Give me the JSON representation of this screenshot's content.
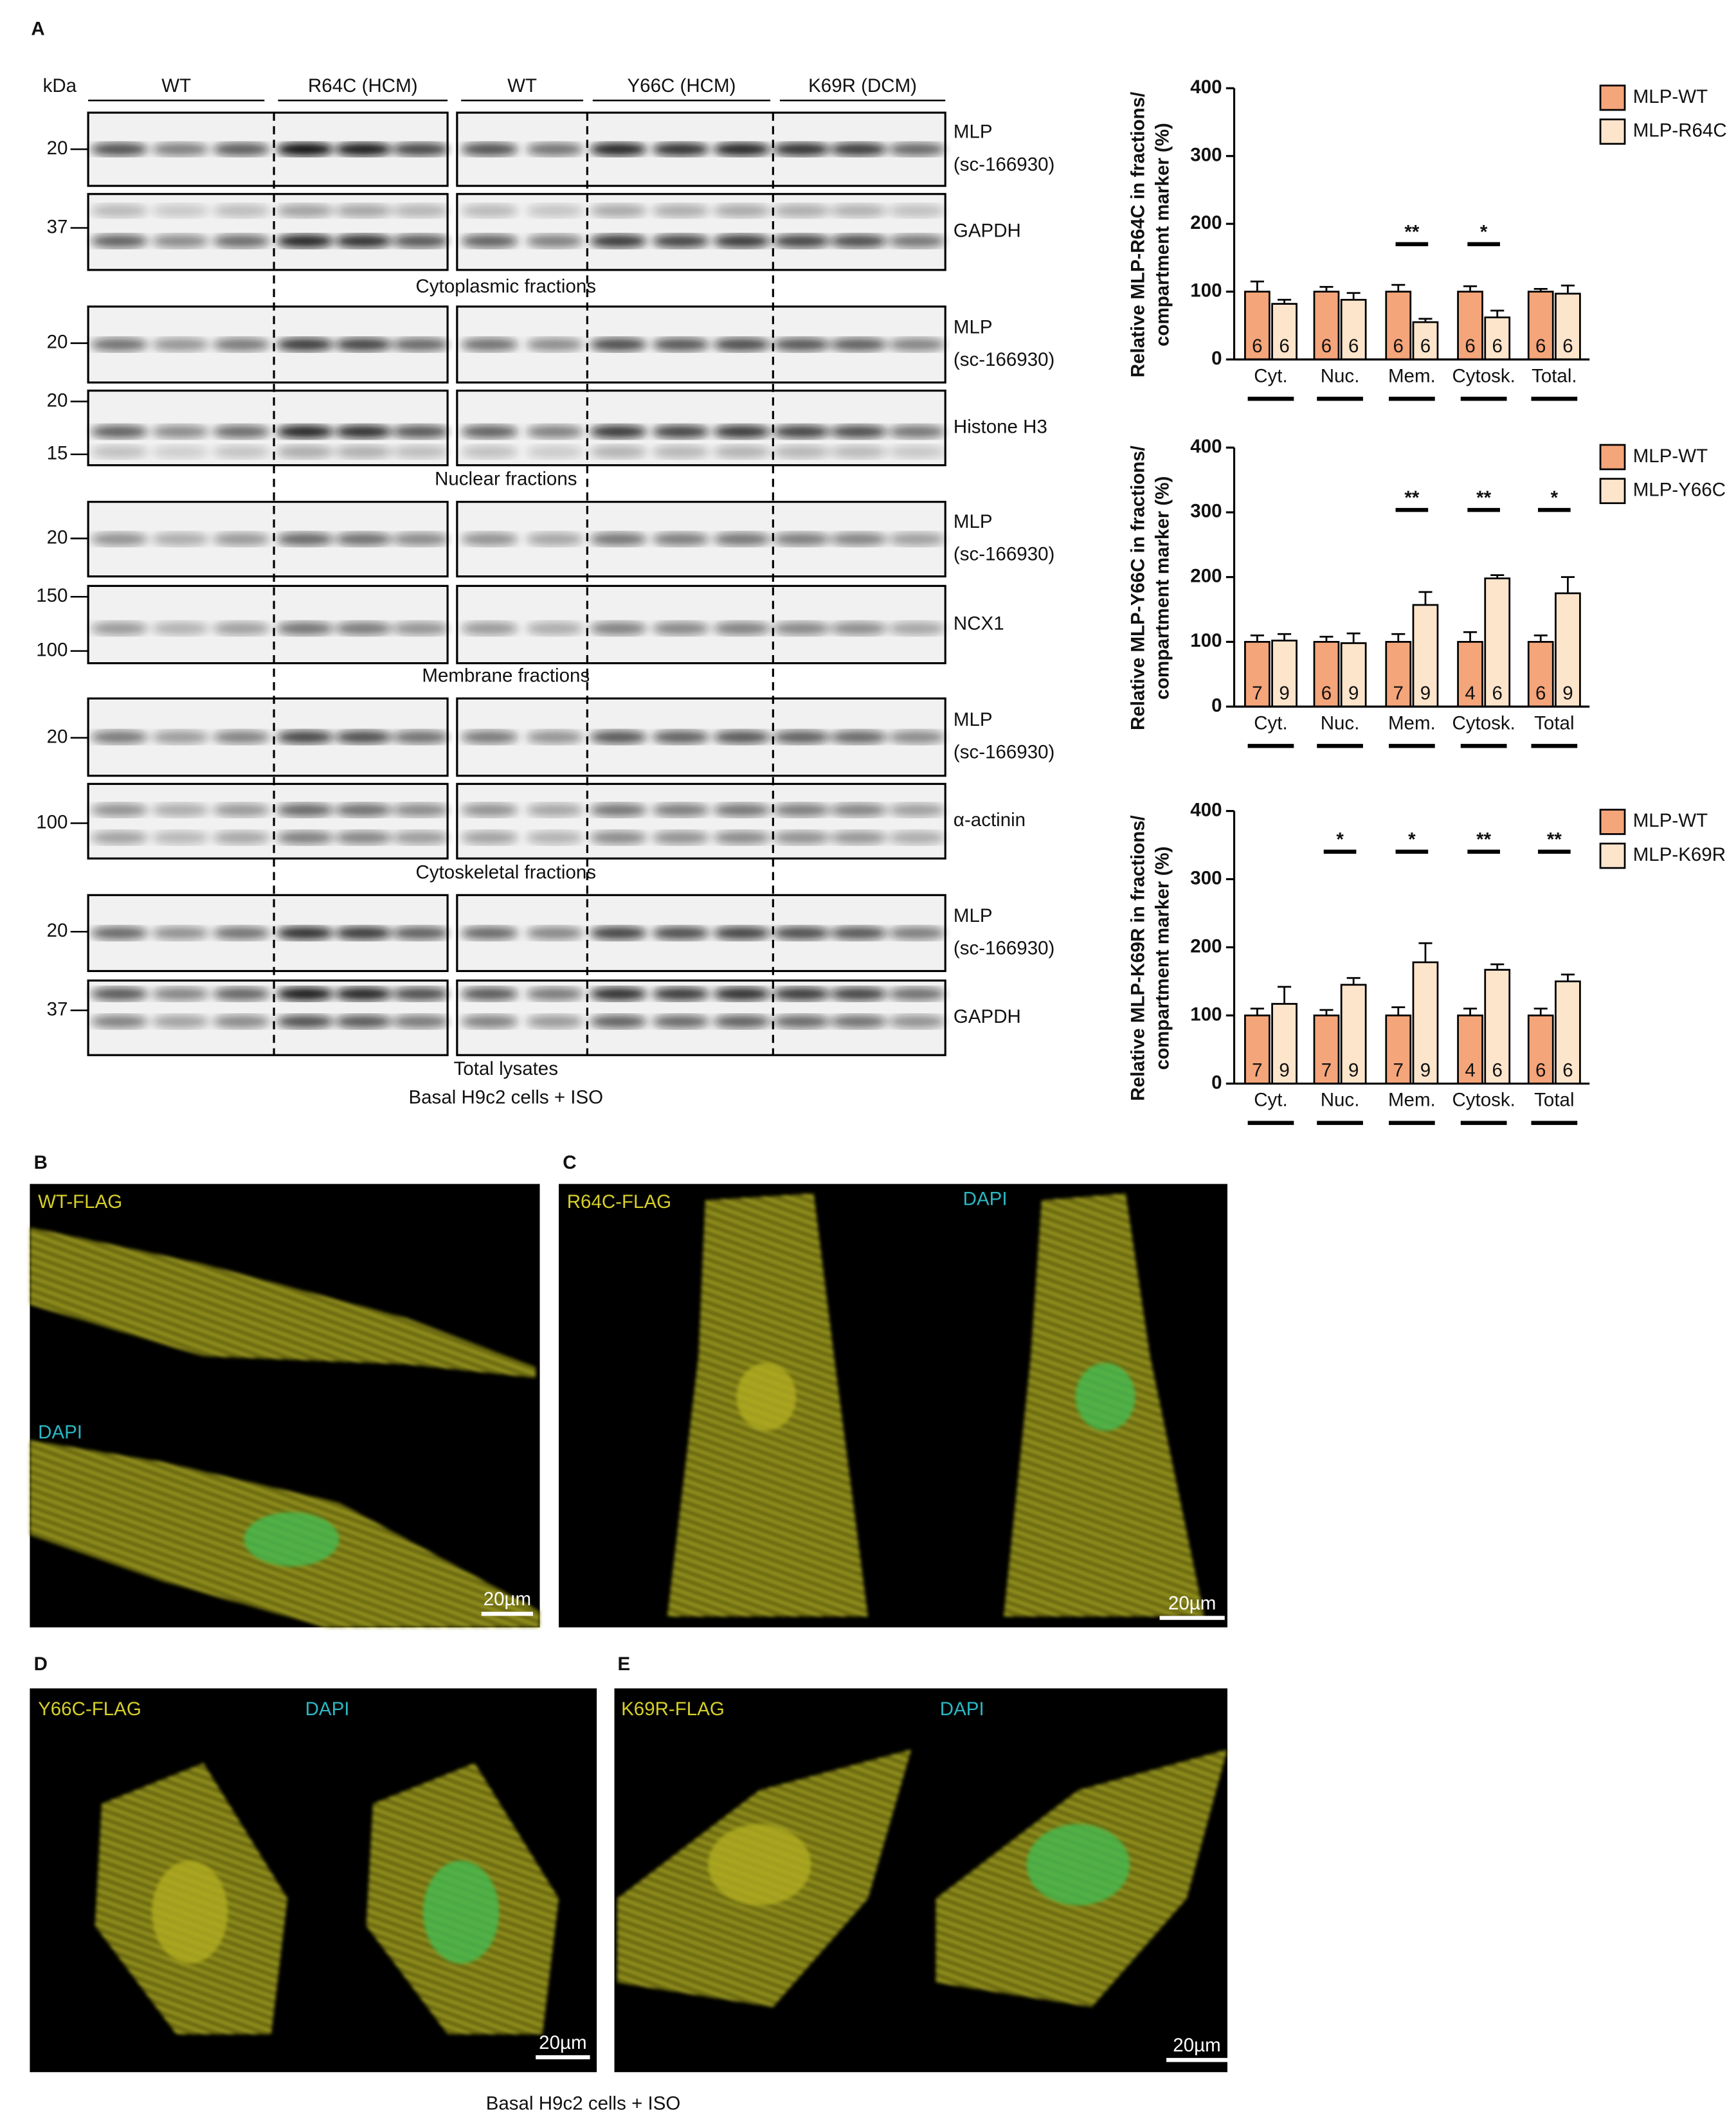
{
  "panel_a": {
    "label": "A",
    "blots": {
      "kda_label": "kDa",
      "groups": [
        "WT",
        "R64C (HCM)",
        "WT",
        "Y66C (HCM)",
        "K69R (DCM)"
      ],
      "rows": [
        {
          "markers": [
            20
          ],
          "protein": [
            "MLP",
            "(sc-166930)"
          ]
        },
        {
          "markers": [
            37
          ],
          "protein": [
            "GAPDH"
          ]
        },
        {
          "markers": [
            20
          ],
          "protein": [
            "MLP",
            "(sc-166930)"
          ]
        },
        {
          "markers": [
            20,
            15
          ],
          "protein": [
            "Histone H3"
          ]
        },
        {
          "markers": [
            20
          ],
          "protein": [
            "MLP",
            "(sc-166930)"
          ]
        },
        {
          "markers": [
            150,
            100
          ],
          "protein": [
            "NCX1"
          ]
        },
        {
          "markers": [
            20
          ],
          "protein": [
            "MLP",
            "(sc-166930)"
          ]
        },
        {
          "markers": [
            100
          ],
          "protein": [
            "α-actinin"
          ]
        },
        {
          "markers": [
            20
          ],
          "protein": [
            "MLP",
            "(sc-166930)"
          ]
        },
        {
          "markers": [
            37
          ],
          "protein": [
            "GAPDH"
          ]
        }
      ],
      "fractions": [
        "Cytoplasmic fractions",
        "Nuclear fractions",
        "Membrane fractions",
        "Cytoskeletal fractions",
        "Total lysates"
      ],
      "caption": "Basal H9c2 cells + ISO"
    }
  },
  "chart_data": [
    {
      "type": "bar",
      "ylabel": [
        "Relative MLP-R64C in fractions/",
        "compartment marker (%)"
      ],
      "categories": [
        "Cyt.",
        "Nuc.",
        "Mem.",
        "Cytosk.",
        "Total."
      ],
      "series": [
        {
          "name": "MLP-WT",
          "color": "#f5a57a",
          "values": [
            100,
            100,
            100,
            100,
            100
          ],
          "errors": [
            15,
            7,
            10,
            8,
            4
          ],
          "n": [
            6,
            6,
            6,
            6,
            6
          ]
        },
        {
          "name": "MLP-R64C",
          "color": "#fde5cc",
          "values": [
            82,
            88,
            55,
            62,
            97
          ],
          "errors": [
            6,
            10,
            5,
            10,
            12
          ],
          "n": [
            6,
            6,
            6,
            6,
            6
          ]
        }
      ],
      "significance": [
        null,
        null,
        "**",
        "*",
        null
      ],
      "ylim": [
        0,
        400
      ],
      "yticks": [
        0,
        100,
        200,
        300,
        400
      ]
    },
    {
      "type": "bar",
      "ylabel": [
        "Relative MLP-Y66C in fractions/",
        "compartment marker (%)"
      ],
      "categories": [
        "Cyt.",
        "Nuc.",
        "Mem.",
        "Cytosk.",
        "Total"
      ],
      "series": [
        {
          "name": "MLP-WT",
          "color": "#f5a57a",
          "values": [
            100,
            100,
            100,
            100,
            100
          ],
          "errors": [
            10,
            8,
            12,
            15,
            10
          ],
          "n": [
            7,
            6,
            7,
            4,
            6
          ]
        },
        {
          "name": "MLP-Y66C",
          "color": "#fde5cc",
          "values": [
            102,
            98,
            157,
            198,
            175
          ],
          "errors": [
            10,
            15,
            20,
            5,
            25
          ],
          "n": [
            9,
            9,
            9,
            6,
            9
          ]
        }
      ],
      "significance": [
        null,
        null,
        "**",
        "**",
        "*"
      ],
      "ylim": [
        0,
        400
      ],
      "yticks": [
        0,
        100,
        200,
        300,
        400
      ]
    },
    {
      "type": "bar",
      "ylabel": [
        "Relative MLP-K69R in fractions/",
        "compartment marker (%)"
      ],
      "categories": [
        "Cyt.",
        "Nuc.",
        "Mem.",
        "Cytosk.",
        "Total"
      ],
      "series": [
        {
          "name": "MLP-WT",
          "color": "#f5a57a",
          "values": [
            100,
            100,
            100,
            100,
            100
          ],
          "errors": [
            10,
            8,
            12,
            10,
            10
          ],
          "n": [
            7,
            7,
            7,
            4,
            6
          ]
        },
        {
          "name": "MLP-K69R",
          "color": "#fde5cc",
          "values": [
            117,
            145,
            178,
            167,
            150
          ],
          "errors": [
            25,
            10,
            28,
            8,
            10
          ],
          "n": [
            9,
            9,
            9,
            6,
            6
          ]
        }
      ],
      "significance": [
        null,
        "*",
        "*",
        "**",
        "**"
      ],
      "ylim": [
        0,
        400
      ],
      "yticks": [
        0,
        100,
        200,
        300,
        400
      ]
    }
  ],
  "images": [
    {
      "panel": "B",
      "label": "WT-FLAG",
      "stain": "DAPI",
      "scale_bar": "20µm"
    },
    {
      "panel": "C",
      "label": "R64C-FLAG",
      "stain": "DAPI",
      "scale_bar": "20µm"
    },
    {
      "panel": "D",
      "label": "Y66C-FLAG",
      "stain": "DAPI",
      "scale_bar": "20µm"
    },
    {
      "panel": "E",
      "label": "K69R-FLAG",
      "stain": "DAPI",
      "scale_bar": "20µm"
    }
  ],
  "caption": "Basal H9c2 cells + ISO"
}
